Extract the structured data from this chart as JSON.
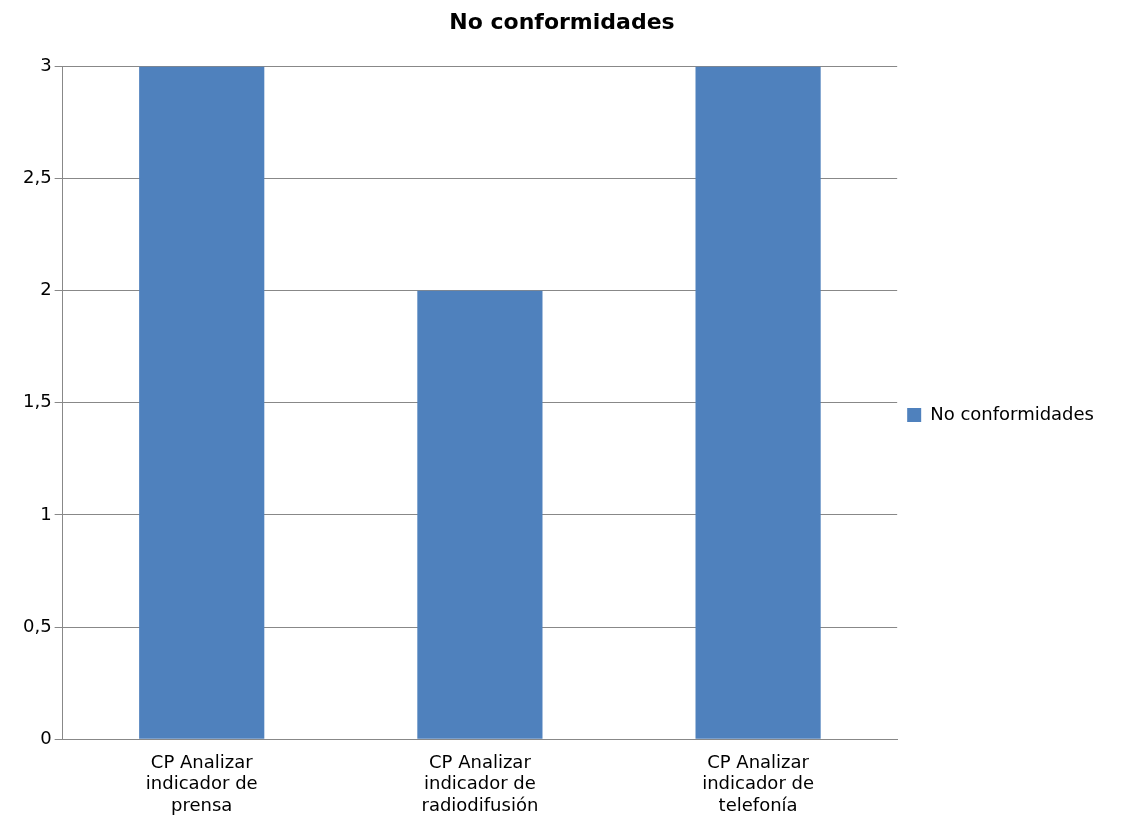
{
  "chart_data": {
    "type": "bar",
    "title": "No conformidades",
    "categories": [
      "CP Analizar indicador de prensa",
      "CP Analizar indicador de radiodifusión",
      "CP Analizar indicador de telefonía"
    ],
    "series": [
      {
        "name": "No conformidades",
        "color": "#4f81bd",
        "values": [
          3,
          2,
          3
        ]
      }
    ],
    "ylim": [
      0,
      3
    ],
    "yticks": [
      0,
      {
        "value": 0.5,
        "label": "0,5"
      },
      1,
      {
        "value": 1.5,
        "label": "1,5"
      },
      2,
      {
        "value": 2.5,
        "label": "2,5"
      },
      3
    ],
    "grid": "y",
    "legend": "right"
  }
}
